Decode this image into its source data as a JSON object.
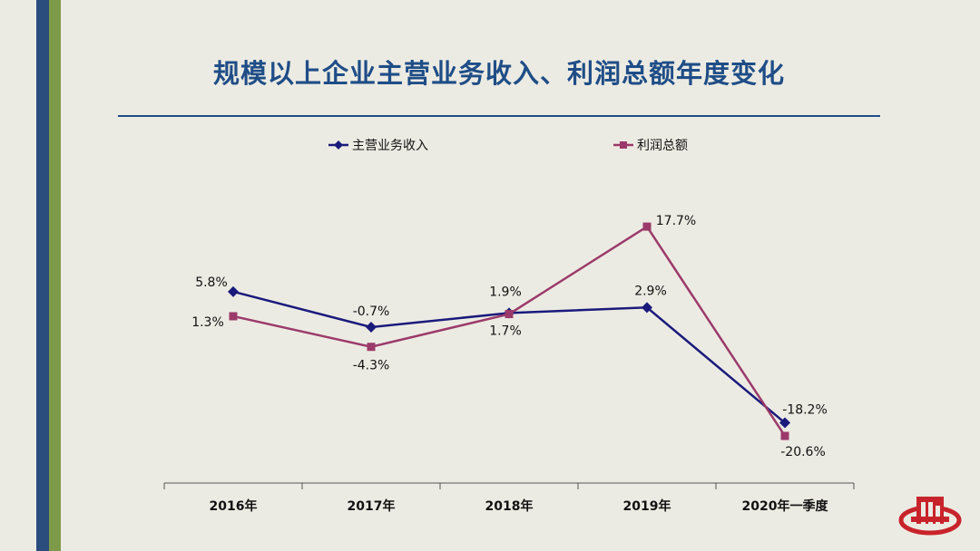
{
  "title": "规模以上企业主营业务收入、利润总额年度变化",
  "colors": {
    "title": "#1f4d87",
    "revenue": "#1a1a7c",
    "profit": "#9b3a6a",
    "logo": "#c8232b",
    "stripe_blue": "#2a4d7e",
    "stripe_green": "#7d9a48"
  },
  "chart_data": {
    "type": "line",
    "title": "规模以上企业主营业务收入、利润总额年度变化",
    "categories": [
      "2016年",
      "2017年",
      "2018年",
      "2019年",
      "2020年一季度"
    ],
    "ylim": [
      -23,
      23
    ],
    "grid": false,
    "legend_position": "top",
    "series": [
      {
        "name": "主营业务收入",
        "marker": "diamond",
        "values": [
          5.8,
          -0.7,
          1.9,
          2.9,
          -18.2
        ],
        "labels": [
          "5.8%",
          "-0.7%",
          "1.9%",
          "2.9%",
          "-18.2%"
        ]
      },
      {
        "name": "利润总额",
        "marker": "square",
        "values": [
          1.3,
          -4.3,
          1.7,
          17.7,
          -20.6
        ],
        "labels": [
          "1.3%",
          "-4.3%",
          "1.7%",
          "17.7%",
          "-20.6%"
        ]
      }
    ]
  }
}
